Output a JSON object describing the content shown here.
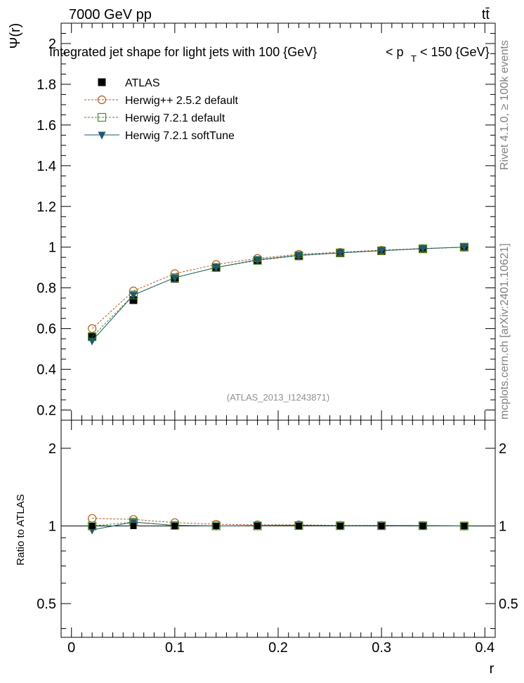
{
  "header": {
    "energy_label": "7000 GeV pp",
    "process_label": "tt̄"
  },
  "side_labels": {
    "rivet": "Rivet 4.1.0, ≥ 100k events",
    "mcplots": "mcplots.cern.ch [arXiv:2401.10621]"
  },
  "chart_data": {
    "type": "line",
    "title": "Integrated jet shape for light jets with 100 {GeV}     < p_T < 150 {GeV}",
    "title_main": "Integrated jet shape for light jets with 100 {GeV}",
    "title_pt_lt": "< p",
    "title_pt_sub": "T",
    "title_pt_range": "< 150 {GeV}",
    "analysis_tag": "(ATLAS_2013_I1243871)",
    "xlabel": "r",
    "ylabel": "Ψ(r)",
    "ratio_ylabel": "Ratio to ATLAS",
    "xlim": [
      -0.01,
      0.41
    ],
    "ylim": [
      0.15,
      2.1
    ],
    "ratio_ylim": [
      0.37,
      2.57
    ],
    "xticks": [
      "0",
      "0.1",
      "0.2",
      "0.3",
      "0.4"
    ],
    "yticks": [
      "0.2",
      "0.4",
      "0.6",
      "0.8",
      "1",
      "1.2",
      "1.4",
      "1.6",
      "1.8",
      "2"
    ],
    "ratio_yticks": [
      "0.5",
      "1",
      "2"
    ],
    "x": [
      0.02,
      0.06,
      0.1,
      0.14,
      0.18,
      0.22,
      0.26,
      0.3,
      0.34,
      0.38
    ],
    "series": [
      {
        "name": "ATLAS",
        "marker": "filled-square",
        "color": "#000000",
        "values": [
          0.56,
          0.74,
          0.845,
          0.9,
          0.935,
          0.955,
          0.97,
          0.98,
          0.99,
          1.0
        ]
      },
      {
        "name": "Herwig++ 2.5.2 default",
        "marker": "open-circle",
        "color": "#b35a1f",
        "values": [
          0.6,
          0.785,
          0.87,
          0.915,
          0.945,
          0.965,
          0.975,
          0.985,
          0.993,
          1.0
        ]
      },
      {
        "name": "Herwig 7.2.1 default",
        "marker": "open-square",
        "color": "#4a8c1c",
        "values": [
          0.56,
          0.765,
          0.85,
          0.9,
          0.935,
          0.958,
          0.972,
          0.982,
          0.992,
          1.0
        ]
      },
      {
        "name": "Herwig 7.2.1 softTune",
        "marker": "filled-triangle-down",
        "color": "#1e5a6e",
        "values": [
          0.54,
          0.765,
          0.85,
          0.9,
          0.938,
          0.96,
          0.972,
          0.983,
          0.993,
          1.0
        ]
      }
    ],
    "ratio_series": [
      {
        "name": "Herwig++ 2.5.2 default",
        "values": [
          1.07,
          1.06,
          1.03,
          1.015,
          1.01,
          1.01,
          1.005,
          1.005,
          1.003,
          1.0
        ]
      },
      {
        "name": "Herwig 7.2.1 default",
        "values": [
          1.0,
          1.035,
          1.005,
          1.0,
          1.0,
          1.003,
          1.002,
          1.002,
          1.002,
          1.0
        ]
      },
      {
        "name": "Herwig 7.2.1 softTune",
        "values": [
          0.965,
          1.035,
          1.005,
          1.0,
          1.003,
          1.005,
          1.002,
          1.003,
          1.003,
          1.0
        ]
      }
    ]
  }
}
